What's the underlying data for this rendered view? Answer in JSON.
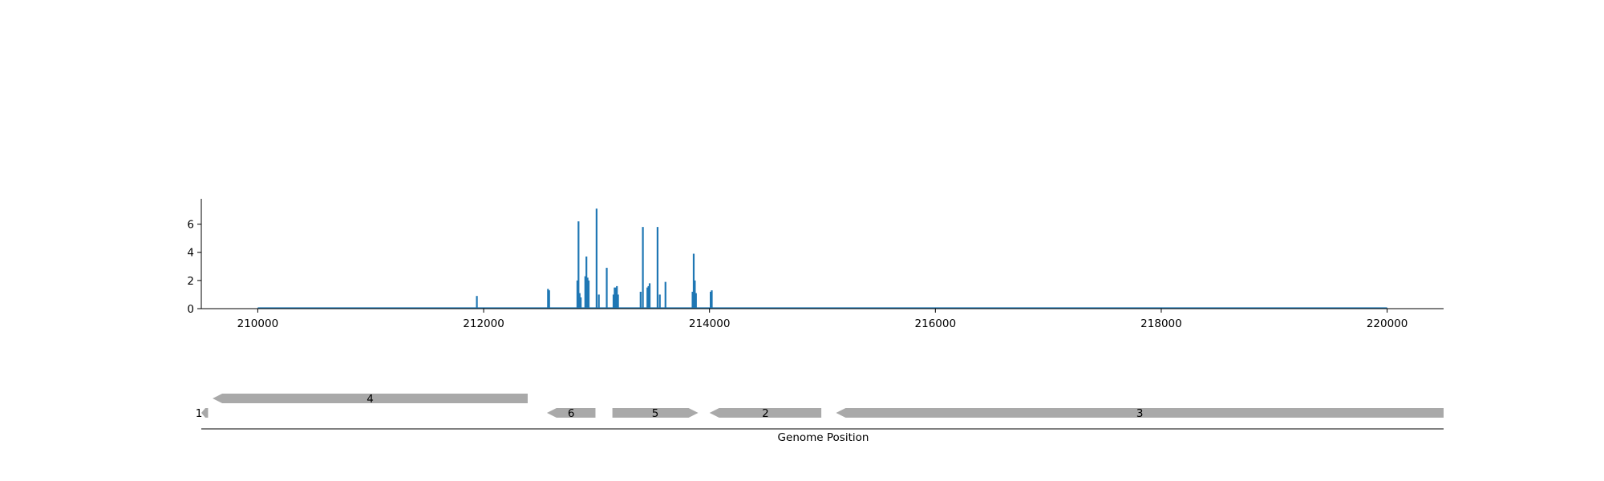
{
  "chart_data": [
    {
      "type": "bar",
      "title": "",
      "xlabel": "",
      "ylabel": "",
      "xlim": [
        209500,
        220500
      ],
      "ylim": [
        0,
        7.8
      ],
      "xticks": [
        "210000",
        "212000",
        "214000",
        "216000",
        "218000",
        "220000"
      ],
      "yticks": [
        "0",
        "2",
        "4",
        "6"
      ],
      "color": "#1f77b4",
      "baseline_range": [
        210000,
        220000
      ],
      "grid": false,
      "legend": "none",
      "x": [
        211940,
        212570,
        212580,
        212830,
        212840,
        212850,
        212860,
        212900,
        212910,
        212920,
        212930,
        213000,
        213020,
        213090,
        213150,
        213160,
        213170,
        213180,
        213190,
        213390,
        213410,
        213450,
        213460,
        213470,
        213540,
        213560,
        213610,
        213850,
        213860,
        213870,
        213880,
        214010,
        214020
      ],
      "values": [
        0.9,
        1.4,
        1.3,
        2.0,
        6.2,
        1.1,
        0.8,
        2.3,
        3.7,
        2.2,
        2.0,
        7.1,
        1.0,
        2.9,
        1.0,
        1.5,
        1.5,
        1.6,
        1.0,
        1.2,
        5.8,
        1.5,
        1.6,
        1.8,
        5.8,
        1.0,
        1.9,
        1.2,
        3.9,
        2.0,
        1.1,
        1.2,
        1.3
      ]
    },
    {
      "type": "gene-track",
      "xlabel": "Genome Position",
      "color": "#a9a9a9",
      "genes": [
        {
          "label": "1",
          "start": 209500,
          "end": 209560,
          "strand": -1,
          "row": 0
        },
        {
          "label": "4",
          "start": 209600,
          "end": 212390,
          "strand": -1,
          "row": 1
        },
        {
          "label": "6",
          "start": 212560,
          "end": 212990,
          "strand": -1,
          "row": 0
        },
        {
          "label": "5",
          "start": 213140,
          "end": 213900,
          "strand": 1,
          "row": 0
        },
        {
          "label": "2",
          "start": 214000,
          "end": 214990,
          "strand": -1,
          "row": 0
        },
        {
          "label": "3",
          "start": 215120,
          "end": 220500,
          "strand": -1,
          "row": 0
        }
      ]
    }
  ]
}
